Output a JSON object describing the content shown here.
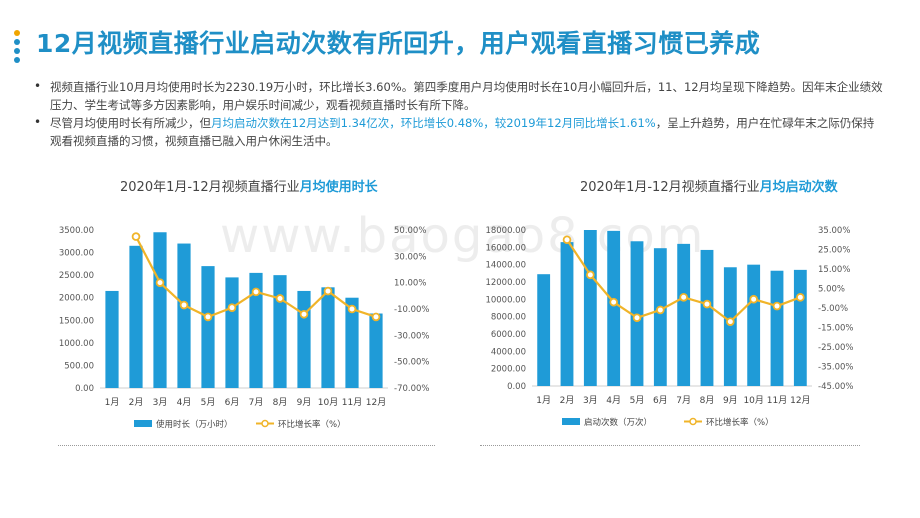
{
  "header": {
    "title": "12月视频直播行业启动次数有所回升，用户观看直播习惯已养成",
    "dot_colors": [
      "#f0a500",
      "#1f8fc6",
      "#1f8fc6",
      "#1f8fc6"
    ]
  },
  "bullets": [
    {
      "parts": [
        {
          "text": "视频直播行业10月月均使用时长为2230.19万小时，环比增长3.60%。第四季度用户月均使用时长在10月小幅回升后，11、12月均呈现下降趋势。因年末企业绩效压力、学生考试等多方因素影响，用户娱乐时间减少，观看视频直播时长有所下降。",
          "highlight": false
        }
      ]
    },
    {
      "parts": [
        {
          "text": "尽管月均使用时长有所减少，但",
          "highlight": false
        },
        {
          "text": "月均启动次数在12月达到1.34亿次，环比增长0.48%，较2019年12月同比增长1.61%",
          "highlight": true
        },
        {
          "text": "，呈上升趋势，用户在忙碌年末之际仍保持观看视频直播的习惯，视频直播已融入用户休闲生活中。",
          "highlight": false
        }
      ]
    }
  ],
  "watermark": "www.baogao8.com",
  "colors": {
    "bar": "#1f9bd7",
    "line": "#f0b429",
    "accent": "#1f9bd7",
    "title": "#1f8fc6"
  },
  "chart_data": [
    {
      "type": "bar",
      "title_prefix": "2020年1月-12月视频直播行业",
      "title_accent": "月均使用时长",
      "categories": [
        "1月",
        "2月",
        "3月",
        "4月",
        "5月",
        "6月",
        "7月",
        "8月",
        "9月",
        "10月",
        "11月",
        "12月"
      ],
      "series": [
        {
          "name": "使用时长（万小时）",
          "type": "bar",
          "axis": "left",
          "values": [
            2150,
            3150,
            3450,
            3200,
            2700,
            2450,
            2550,
            2500,
            2150,
            2230.19,
            2000,
            1650
          ]
        },
        {
          "name": "环比增长率（%）",
          "type": "line",
          "axis": "right",
          "values": [
            null,
            45,
            10,
            -7,
            -16,
            -9,
            3,
            -2,
            -14,
            3.6,
            -10,
            -16
          ]
        }
      ],
      "left_axis": {
        "min": 0,
        "max": 3500,
        "step": 500,
        "decimals": 2,
        "suffix": ""
      },
      "right_axis": {
        "min": -70,
        "max": 50,
        "step": 20,
        "decimals": 2,
        "suffix": "%"
      },
      "grid": false,
      "legend": "bottom"
    },
    {
      "type": "bar",
      "title_prefix": "2020年1月-12月视频直播行业",
      "title_accent": "月均启动次数",
      "categories": [
        "1月",
        "2月",
        "3月",
        "4月",
        "5月",
        "6月",
        "7月",
        "8月",
        "9月",
        "10月",
        "11月",
        "12月"
      ],
      "series": [
        {
          "name": "启动次数（万次）",
          "type": "bar",
          "axis": "left",
          "values": [
            12900,
            16600,
            18000,
            17900,
            16700,
            15900,
            16400,
            15700,
            13700,
            14000,
            13300,
            13400
          ]
        },
        {
          "name": "环比增长率（%）",
          "type": "line",
          "axis": "right",
          "values": [
            null,
            30,
            12,
            -2,
            -10,
            -6,
            0.5,
            -3,
            -12,
            -0.5,
            -4,
            0.48
          ]
        }
      ],
      "left_axis": {
        "min": 0,
        "max": 18000,
        "step": 2000,
        "decimals": 2,
        "suffix": ""
      },
      "right_axis": {
        "min": -45,
        "max": 35,
        "step": 10,
        "decimals": 2,
        "suffix": "%"
      },
      "grid": false,
      "legend": "bottom"
    }
  ]
}
